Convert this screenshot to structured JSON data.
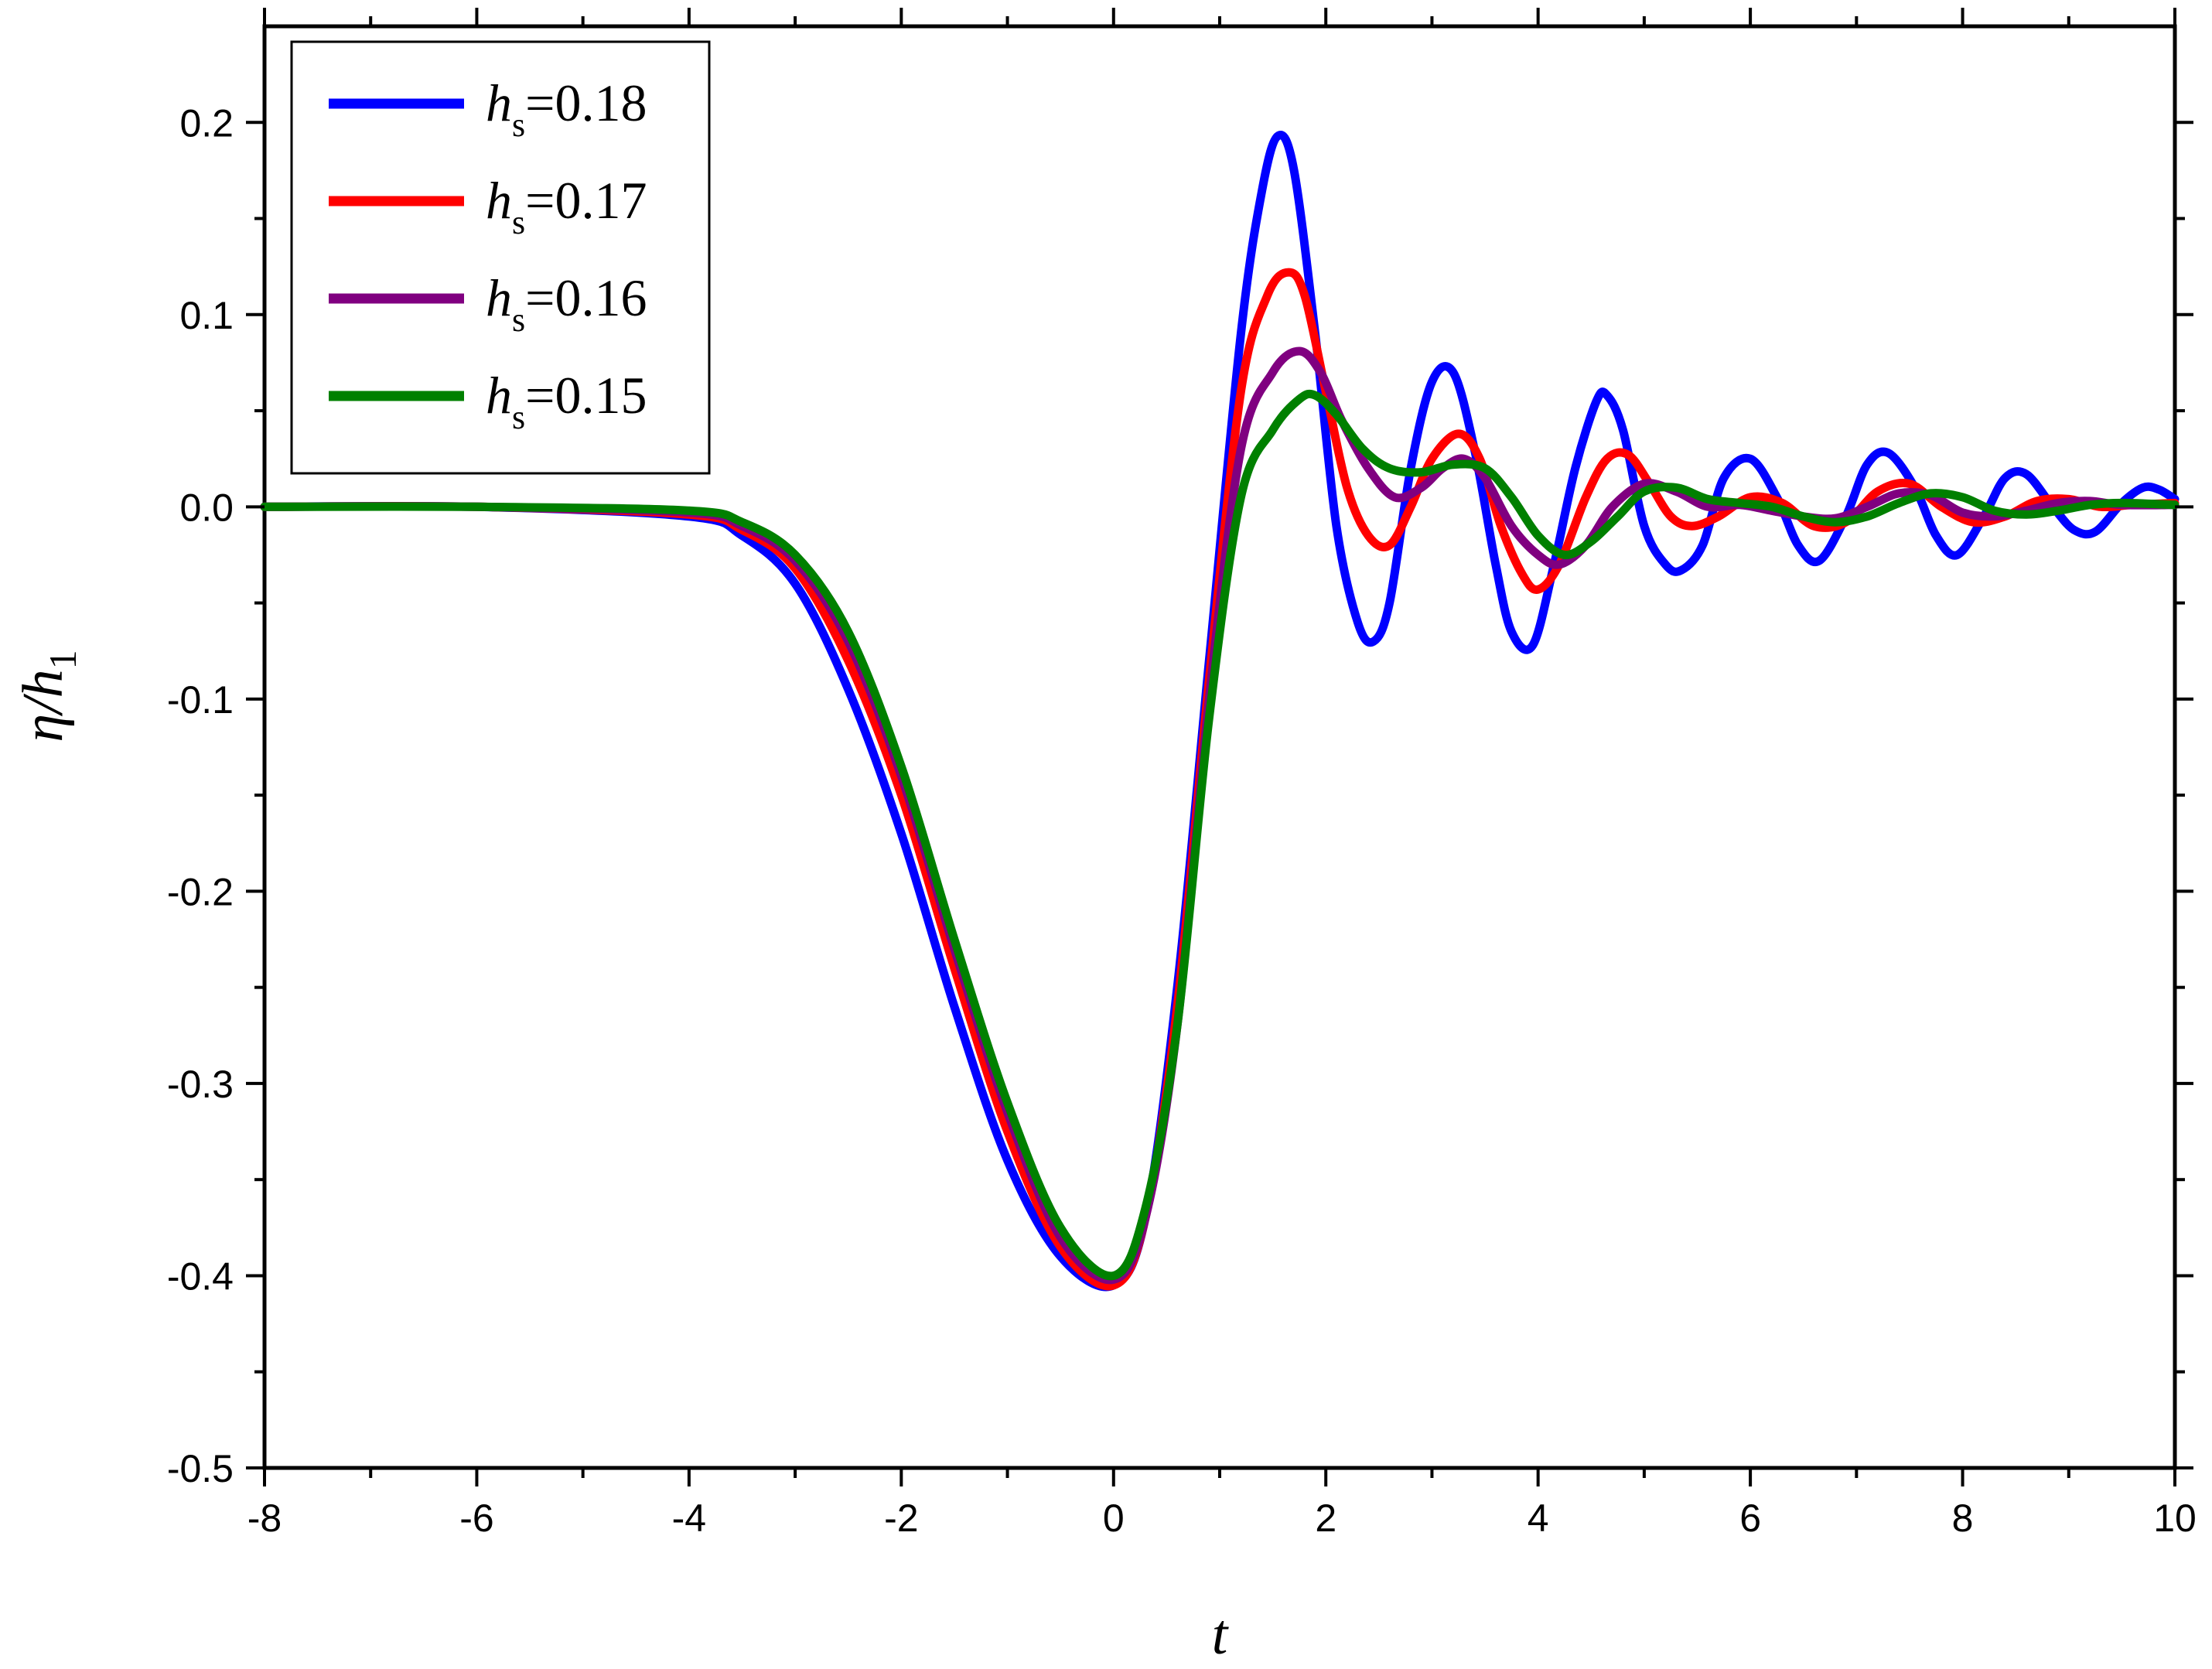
{
  "chart_data": {
    "type": "line",
    "title": "",
    "xlabel": "t",
    "ylabel": "η/h",
    "ylabel_sub": "1",
    "xlim": [
      -8,
      10
    ],
    "ylim": [
      -0.5,
      0.25
    ],
    "x_ticks": [
      -8,
      -6,
      -4,
      -2,
      0,
      2,
      4,
      6,
      8,
      10
    ],
    "x_tick_labels": [
      "-8",
      "-6",
      "-4",
      "-2",
      "0",
      "2",
      "4",
      "6",
      "8",
      "10"
    ],
    "y_ticks": [
      -0.5,
      -0.4,
      -0.3,
      -0.2,
      -0.1,
      0.0,
      0.1,
      0.2
    ],
    "y_tick_labels": [
      "-0.5",
      "-0.4",
      "-0.3",
      "-0.2",
      "-0.1",
      "0.0",
      "0.1",
      "0.2"
    ],
    "grid": false,
    "legend_position": "top-left",
    "series": [
      {
        "name_var": "h",
        "name_sub": "s",
        "name_value": "=0.18",
        "color": "#0000ff",
        "x": [
          -8,
          -6,
          -4,
          -3.5,
          -3,
          -2.5,
          -2,
          -1.5,
          -1,
          -0.5,
          0,
          0.3,
          0.6,
          0.9,
          1.2,
          1.4,
          1.55,
          1.7,
          1.9,
          2.1,
          2.3,
          2.45,
          2.6,
          2.8,
          3.0,
          3.2,
          3.4,
          3.6,
          3.75,
          3.95,
          4.15,
          4.35,
          4.55,
          4.65,
          4.8,
          5.0,
          5.2,
          5.35,
          5.55,
          5.75,
          6.0,
          6.25,
          6.45,
          6.65,
          6.9,
          7.1,
          7.3,
          7.55,
          7.75,
          7.95,
          8.2,
          8.4,
          8.6,
          8.85,
          9.05,
          9.25,
          9.5,
          9.7,
          9.85,
          10
        ],
        "y": [
          0,
          0,
          -0.005,
          -0.015,
          -0.04,
          -0.095,
          -0.17,
          -0.26,
          -0.34,
          -0.39,
          -0.405,
          -0.37,
          -0.25,
          -0.08,
          0.09,
          0.165,
          0.193,
          0.175,
          0.09,
          -0.01,
          -0.06,
          -0.07,
          -0.05,
          0.02,
          0.065,
          0.07,
          0.03,
          -0.03,
          -0.065,
          -0.072,
          -0.03,
          0.02,
          0.055,
          0.058,
          0.04,
          -0.01,
          -0.03,
          -0.033,
          -0.02,
          0.015,
          0.025,
          0.005,
          -0.02,
          -0.028,
          -0.005,
          0.022,
          0.028,
          0.01,
          -0.015,
          -0.025,
          -0.005,
          0.015,
          0.017,
          0.0,
          -0.012,
          -0.013,
          0.002,
          0.01,
          0.009,
          0.004
        ]
      },
      {
        "name_var": "h",
        "name_sub": "s",
        "name_value": "=0.17",
        "color": "#ff0000",
        "x": [
          -8,
          -6,
          -4,
          -3.5,
          -3,
          -2.5,
          -2,
          -1.5,
          -1,
          -0.5,
          0,
          0.3,
          0.6,
          0.9,
          1.2,
          1.45,
          1.65,
          1.8,
          2.0,
          2.2,
          2.4,
          2.6,
          2.8,
          3.0,
          3.25,
          3.45,
          3.65,
          3.85,
          4.0,
          4.2,
          4.45,
          4.65,
          4.85,
          5.05,
          5.25,
          5.45,
          5.7,
          6.0,
          6.3,
          6.6,
          6.9,
          7.2,
          7.5,
          7.8,
          8.1,
          8.4,
          8.7,
          9.0,
          9.3,
          9.6,
          10
        ],
        "y": [
          0,
          0,
          -0.004,
          -0.012,
          -0.032,
          -0.08,
          -0.15,
          -0.24,
          -0.325,
          -0.385,
          -0.405,
          -0.37,
          -0.26,
          -0.09,
          0.06,
          0.11,
          0.122,
          0.11,
          0.06,
          0.01,
          -0.015,
          -0.02,
          0.0,
          0.025,
          0.038,
          0.025,
          -0.01,
          -0.035,
          -0.043,
          -0.03,
          0.005,
          0.025,
          0.027,
          0.012,
          -0.005,
          -0.01,
          -0.005,
          0.005,
          0.002,
          -0.01,
          -0.008,
          0.008,
          0.012,
          0.0,
          -0.008,
          -0.005,
          0.003,
          0.004,
          0.0,
          0.001,
          0.002
        ]
      },
      {
        "name_var": "h",
        "name_sub": "s",
        "name_value": "=0.16",
        "color": "#800080",
        "x": [
          -8,
          -6,
          -4,
          -3.5,
          -3,
          -2.5,
          -2,
          -1.5,
          -1,
          -0.5,
          0,
          0.3,
          0.6,
          0.9,
          1.2,
          1.5,
          1.75,
          1.95,
          2.15,
          2.4,
          2.65,
          2.9,
          3.1,
          3.3,
          3.5,
          3.75,
          4.0,
          4.2,
          4.45,
          4.7,
          5.0,
          5.3,
          5.6,
          5.9,
          6.2,
          6.5,
          6.8,
          7.1,
          7.4,
          7.7,
          8.0,
          8.3,
          8.6,
          8.9,
          9.2,
          9.5,
          10
        ],
        "y": [
          0,
          0,
          -0.003,
          -0.01,
          -0.028,
          -0.07,
          -0.14,
          -0.23,
          -0.315,
          -0.38,
          -0.402,
          -0.37,
          -0.27,
          -0.1,
          0.03,
          0.07,
          0.081,
          0.07,
          0.045,
          0.02,
          0.005,
          0.01,
          0.02,
          0.025,
          0.015,
          -0.01,
          -0.025,
          -0.03,
          -0.02,
          0.0,
          0.012,
          0.008,
          0.0,
          0.001,
          -0.002,
          -0.005,
          -0.006,
          0.0,
          0.007,
          0.006,
          -0.003,
          -0.005,
          -0.002,
          0.002,
          0.003,
          0.001,
          0.001
        ]
      },
      {
        "name_var": "h",
        "name_sub": "s",
        "name_value": "=0.15",
        "color": "#008000",
        "x": [
          -8,
          -6,
          -4,
          -3.5,
          -3,
          -2.5,
          -2,
          -1.5,
          -1,
          -0.5,
          0,
          0.3,
          0.6,
          0.9,
          1.2,
          1.5,
          1.75,
          1.9,
          2.1,
          2.35,
          2.6,
          2.9,
          3.2,
          3.5,
          3.75,
          4.0,
          4.25,
          4.5,
          4.75,
          5.0,
          5.3,
          5.6,
          5.9,
          6.2,
          6.5,
          6.8,
          7.1,
          7.4,
          7.7,
          8.0,
          8.3,
          8.6,
          8.9,
          9.2,
          9.5,
          10
        ],
        "y": [
          0,
          0,
          -0.002,
          -0.008,
          -0.025,
          -0.065,
          -0.135,
          -0.225,
          -0.31,
          -0.375,
          -0.4,
          -0.365,
          -0.27,
          -0.11,
          0.005,
          0.04,
          0.056,
          0.058,
          0.048,
          0.03,
          0.02,
          0.018,
          0.022,
          0.02,
          0.005,
          -0.015,
          -0.025,
          -0.018,
          -0.005,
          0.008,
          0.01,
          0.004,
          0.002,
          0.0,
          -0.005,
          -0.008,
          -0.005,
          0.002,
          0.007,
          0.005,
          -0.002,
          -0.004,
          -0.002,
          0.001,
          0.002,
          0.001
        ]
      }
    ]
  }
}
